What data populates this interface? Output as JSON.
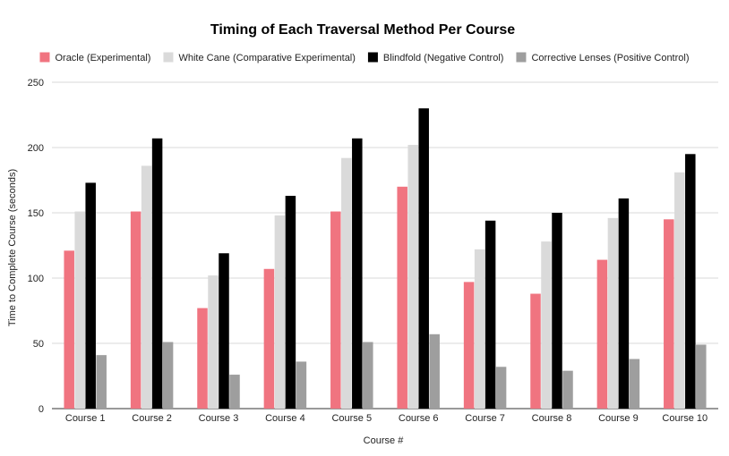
{
  "chart_data": {
    "type": "bar",
    "title": "Timing of Each Traversal Method Per Course",
    "xlabel": "Course #",
    "ylabel": "Time to Complete Course (seconds)",
    "ylim": [
      0,
      250
    ],
    "yticks": [
      0,
      50,
      100,
      150,
      200,
      250
    ],
    "grid": true,
    "legend_position": "top",
    "categories": [
      "Course 1",
      "Course 2",
      "Course 3",
      "Course 4",
      "Course 5",
      "Course 6",
      "Course 7",
      "Course 8",
      "Course 9",
      "Course 10"
    ],
    "series": [
      {
        "name": "Oracle (Experimental)",
        "color": "#f07480",
        "values": [
          121,
          151,
          77,
          107,
          151,
          170,
          97,
          88,
          114,
          145
        ]
      },
      {
        "name": "White Cane (Comparative Experimental)",
        "color": "#dadada",
        "values": [
          151,
          186,
          102,
          148,
          192,
          202,
          122,
          128,
          146,
          181
        ]
      },
      {
        "name": "Blindfold (Negative Control)",
        "color": "#000000",
        "values": [
          173,
          207,
          119,
          163,
          207,
          230,
          144,
          150,
          161,
          195
        ]
      },
      {
        "name": "Corrective Lenses (Positive Control)",
        "color": "#9e9e9e",
        "values": [
          41,
          51,
          26,
          36,
          51,
          57,
          32,
          29,
          38,
          49
        ]
      }
    ]
  }
}
